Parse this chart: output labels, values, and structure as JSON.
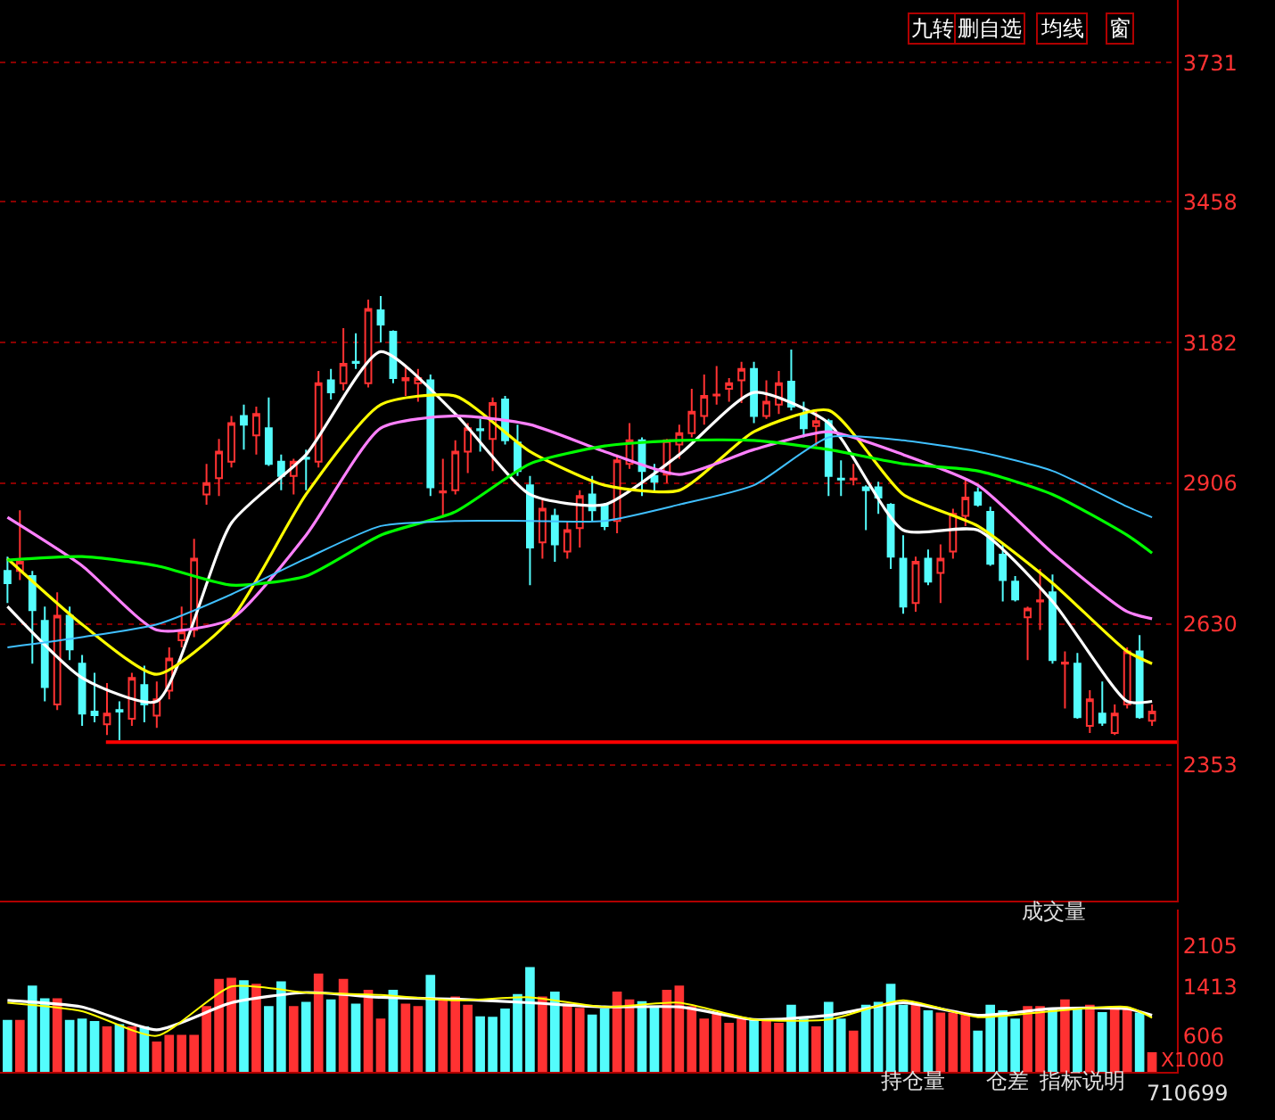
{
  "chart_data": [
    {
      "type": "candlestick",
      "categories": [
        null,
        null,
        null,
        null,
        null,
        null,
        null,
        null,
        null,
        null,
        null,
        null,
        null,
        null,
        null,
        null,
        null,
        null,
        null,
        null,
        null,
        null,
        null,
        null,
        null,
        null,
        null,
        null,
        null,
        null,
        null,
        null,
        null,
        null,
        null,
        null,
        null,
        null,
        null,
        null,
        null,
        null,
        null,
        null,
        null,
        null,
        null,
        null,
        null,
        null,
        null,
        null,
        null,
        null,
        null,
        null,
        null,
        null,
        null,
        null,
        null,
        null,
        null,
        null,
        null,
        null,
        null,
        null,
        null,
        null,
        null,
        null,
        null,
        null,
        null,
        null,
        null,
        null,
        null,
        null,
        null,
        null,
        null,
        null,
        null,
        null,
        null,
        null,
        null,
        null,
        null,
        null,
        null
      ],
      "ohlc": [
        [
          2734,
          2762,
          2671,
          2710
        ],
        [
          2734,
          2853,
          2716,
          2752
        ],
        [
          2724,
          2734,
          2552,
          2657
        ],
        [
          2636,
          2664,
          2478,
          2506
        ],
        [
          2472,
          2692,
          2461,
          2646
        ],
        [
          2646,
          2664,
          2559,
          2580
        ],
        [
          2552,
          2569,
          2430,
          2454
        ],
        [
          2458,
          2534,
          2437,
          2451
        ],
        [
          2433,
          2514,
          2412,
          2454
        ],
        [
          2461,
          2478,
          2402,
          2458
        ],
        [
          2444,
          2534,
          2430,
          2524
        ],
        [
          2510,
          2548,
          2437,
          2472
        ],
        [
          2450,
          2517,
          2426,
          2482
        ],
        [
          2499,
          2584,
          2482,
          2562
        ],
        [
          2598,
          2664,
          2584,
          2615
        ],
        [
          2618,
          2797,
          2604,
          2758
        ],
        [
          2884,
          2944,
          2864,
          2906
        ],
        [
          2916,
          2993,
          2881,
          2968
        ],
        [
          2948,
          3038,
          2937,
          3024
        ],
        [
          3038,
          3060,
          2972,
          3021
        ],
        [
          3000,
          3056,
          2962,
          3042
        ],
        [
          3014,
          3074,
          2940,
          2944
        ],
        [
          2948,
          2962,
          2892,
          2920
        ],
        [
          2920,
          2954,
          2884,
          2948
        ],
        [
          2956,
          2972,
          2892,
          2954
        ],
        [
          2948,
          3126,
          2937,
          3102
        ],
        [
          3108,
          3130,
          3070,
          3084
        ],
        [
          3102,
          3210,
          3088,
          3140
        ],
        [
          3144,
          3200,
          3130,
          3142
        ],
        [
          3102,
          3266,
          3094,
          3248
        ],
        [
          3245,
          3273,
          3182,
          3217
        ],
        [
          3203,
          3206,
          3102,
          3112
        ],
        [
          3108,
          3136,
          3077,
          3112
        ],
        [
          3102,
          3130,
          3066,
          3112
        ],
        [
          3108,
          3119,
          2881,
          2898
        ],
        [
          2888,
          2954,
          2839,
          2890
        ],
        [
          2892,
          2990,
          2884,
          2968
        ],
        [
          2968,
          3024,
          2926,
          3014
        ],
        [
          3012,
          3032,
          2968,
          3010
        ],
        [
          2993,
          3074,
          2930,
          3063
        ],
        [
          3070,
          3077,
          2982,
          2990
        ],
        [
          2986,
          3021,
          2920,
          2930
        ],
        [
          2902,
          2920,
          2706,
          2780
        ],
        [
          2790,
          2874,
          2758,
          2856
        ],
        [
          2842,
          2856,
          2752,
          2786
        ],
        [
          2772,
          2832,
          2758,
          2814
        ],
        [
          2818,
          2892,
          2780,
          2881
        ],
        [
          2884,
          2920,
          2832,
          2853
        ],
        [
          2864,
          2867,
          2814,
          2822
        ],
        [
          2832,
          2962,
          2808,
          2951
        ],
        [
          2944,
          3024,
          2934,
          2990
        ],
        [
          2990,
          2996,
          2881,
          2930
        ],
        [
          2920,
          2944,
          2888,
          2909
        ],
        [
          2923,
          2993,
          2906,
          2990
        ],
        [
          2982,
          3021,
          2954,
          3004
        ],
        [
          3004,
          3091,
          2996,
          3046
        ],
        [
          3038,
          3119,
          3021,
          3077
        ],
        [
          3078,
          3136,
          3060,
          3080
        ],
        [
          3091,
          3112,
          3066,
          3102
        ],
        [
          3108,
          3144,
          3063,
          3130
        ],
        [
          3130,
          3144,
          3024,
          3038
        ],
        [
          3038,
          3108,
          3032,
          3066
        ],
        [
          3060,
          3126,
          3042,
          3102
        ],
        [
          3105,
          3168,
          3049,
          3056
        ],
        [
          3042,
          3066,
          2996,
          3014
        ],
        [
          3018,
          3049,
          2979,
          3028
        ],
        [
          3028,
          3032,
          2881,
          2920
        ],
        [
          2915,
          2951,
          2881,
          2913
        ],
        [
          2913,
          2944,
          2902,
          2915
        ],
        [
          2898,
          2902,
          2814,
          2892
        ],
        [
          2898,
          2909,
          2846,
          2878
        ],
        [
          2864,
          2867,
          2738,
          2762
        ],
        [
          2758,
          2804,
          2650,
          2664
        ],
        [
          2671,
          2762,
          2654,
          2752
        ],
        [
          2758,
          2776,
          2706,
          2713
        ],
        [
          2730,
          2786,
          2671,
          2758
        ],
        [
          2772,
          2856,
          2758,
          2846
        ],
        [
          2842,
          2912,
          2822,
          2878
        ],
        [
          2888,
          2898,
          2860,
          2864
        ],
        [
          2850,
          2860,
          2744,
          2748
        ],
        [
          2766,
          2786,
          2674,
          2716
        ],
        [
          2713,
          2724,
          2674,
          2678
        ],
        [
          2643,
          2664,
          2559,
          2660
        ],
        [
          2674,
          2738,
          2618,
          2676
        ],
        [
          2692,
          2727,
          2552,
          2559
        ],
        [
          2552,
          2576,
          2464,
          2554
        ],
        [
          2552,
          2573,
          2444,
          2447
        ],
        [
          2430,
          2500,
          2416,
          2482
        ],
        [
          2454,
          2517,
          2430,
          2436
        ],
        [
          2416,
          2472,
          2412,
          2454
        ],
        [
          2472,
          2584,
          2464,
          2576
        ],
        [
          2576,
          2608,
          2444,
          2447
        ],
        [
          2440,
          2472,
          2430,
          2458
        ]
      ],
      "series": [
        {
          "type": "line",
          "color": "#ffffff",
          "values": [
            2664,
            null,
            null,
            null,
            null,
            null,
            2524,
            null,
            null,
            null,
            null,
            null,
            2478,
            null,
            null,
            null,
            null,
            null,
            2828,
            null,
            null,
            null,
            null,
            null,
            2962,
            null,
            null,
            null,
            null,
            null,
            3164,
            null,
            null,
            null,
            null,
            null,
            3042,
            null,
            null,
            null,
            null,
            null,
            2884,
            null,
            null,
            null,
            null,
            null,
            2864,
            null,
            null,
            null,
            null,
            null,
            2962,
            null,
            null,
            null,
            null,
            null,
            3084,
            null,
            null,
            null,
            null,
            null,
            3024,
            null,
            null,
            null,
            null,
            null,
            2814,
            null,
            null,
            null,
            null,
            null,
            2814,
            null,
            null,
            null,
            null,
            null,
            2674,
            null,
            null,
            null,
            null,
            null,
            2478,
            null,
            2478
          ]
        },
        {
          "type": "line",
          "color": "#ffff00",
          "values": [
            2758,
            null,
            null,
            null,
            null,
            null,
            2629,
            null,
            null,
            null,
            null,
            null,
            2531,
            null,
            null,
            null,
            null,
            null,
            2640,
            null,
            null,
            null,
            null,
            null,
            2884,
            null,
            null,
            null,
            null,
            null,
            3060,
            null,
            null,
            null,
            null,
            null,
            3077,
            null,
            null,
            null,
            null,
            null,
            2968,
            null,
            null,
            null,
            null,
            null,
            2902,
            null,
            null,
            null,
            null,
            null,
            2892,
            null,
            null,
            null,
            null,
            null,
            3007,
            null,
            null,
            null,
            null,
            null,
            3049,
            null,
            null,
            null,
            null,
            null,
            2884,
            null,
            null,
            null,
            null,
            null,
            2822,
            null,
            null,
            null,
            null,
            null,
            2710,
            null,
            null,
            null,
            null,
            null,
            2576,
            null,
            2552
          ]
        },
        {
          "type": "line",
          "color": "#ff80ff",
          "values": [
            2839,
            null,
            null,
            null,
            null,
            null,
            2744,
            null,
            null,
            null,
            null,
            null,
            2618,
            null,
            null,
            null,
            null,
            null,
            2640,
            null,
            null,
            null,
            null,
            null,
            2804,
            null,
            null,
            null,
            null,
            null,
            3014,
            null,
            null,
            null,
            null,
            null,
            3038,
            null,
            null,
            null,
            null,
            null,
            3021,
            null,
            null,
            null,
            null,
            null,
            2968,
            null,
            null,
            null,
            null,
            null,
            2923,
            null,
            null,
            null,
            null,
            null,
            2972,
            null,
            null,
            null,
            null,
            null,
            3007,
            null,
            null,
            null,
            null,
            null,
            2962,
            null,
            null,
            null,
            null,
            null,
            2902,
            null,
            null,
            null,
            null,
            null,
            2769,
            null,
            null,
            null,
            null,
            null,
            2654,
            null,
            2640
          ]
        },
        {
          "type": "line",
          "color": "#00ff00",
          "values": [
            2755,
            null,
            null,
            null,
            null,
            null,
            2762,
            null,
            null,
            null,
            null,
            null,
            2744,
            null,
            null,
            null,
            null,
            null,
            2706,
            null,
            null,
            null,
            null,
            null,
            2724,
            null,
            null,
            null,
            null,
            null,
            2804,
            null,
            null,
            null,
            null,
            null,
            2850,
            null,
            null,
            null,
            null,
            null,
            2944,
            null,
            null,
            null,
            null,
            null,
            2979,
            null,
            null,
            null,
            null,
            null,
            2990,
            null,
            null,
            null,
            null,
            null,
            2990,
            null,
            null,
            null,
            null,
            null,
            2972,
            null,
            null,
            null,
            null,
            null,
            2944,
            null,
            null,
            null,
            null,
            null,
            2930,
            null,
            null,
            null,
            null,
            null,
            2884,
            null,
            null,
            null,
            null,
            null,
            2804,
            null,
            2769
          ]
        },
        {
          "type": "line",
          "color": "#40c0ff",
          "values": [
            2584,
            null,
            null,
            null,
            null,
            null,
            2604,
            null,
            null,
            null,
            null,
            null,
            2629,
            null,
            null,
            null,
            null,
            null,
            2688,
            null,
            null,
            null,
            null,
            null,
            2758,
            null,
            null,
            null,
            null,
            null,
            2822,
            null,
            null,
            null,
            null,
            null,
            2832,
            null,
            null,
            null,
            null,
            null,
            2832,
            null,
            null,
            null,
            null,
            null,
            2832,
            null,
            null,
            null,
            null,
            null,
            2864,
            null,
            null,
            null,
            null,
            null,
            2902,
            null,
            null,
            null,
            null,
            null,
            2996,
            null,
            null,
            null,
            null,
            null,
            2990,
            null,
            null,
            null,
            null,
            null,
            2968,
            null,
            null,
            null,
            null,
            null,
            2930,
            null,
            null,
            null,
            null,
            null,
            2860,
            null,
            2839
          ]
        }
      ],
      "ylim": [
        2087,
        3854
      ],
      "yticks": [
        3731,
        3458,
        3182,
        2906,
        2630,
        2353
      ],
      "grid": "y",
      "tick_labels": "y",
      "ref_lines": [
        {
          "axis": "y",
          "value": 2398,
          "color": "#ff0000"
        }
      ],
      "annotations": [
        "九转",
        "删自选",
        "均线",
        "窗"
      ]
    },
    {
      "type": "bar",
      "categories": [
        null,
        null,
        null,
        null,
        null,
        null,
        null,
        null,
        null,
        null,
        null,
        null,
        null,
        null,
        null,
        null,
        null,
        null,
        null,
        null,
        null,
        null,
        null,
        null,
        null,
        null,
        null,
        null,
        null,
        null,
        null,
        null,
        null,
        null,
        null,
        null,
        null,
        null,
        null,
        null,
        null,
        null,
        null,
        null,
        null,
        null,
        null,
        null,
        null,
        null,
        null,
        null,
        null,
        null,
        null,
        null,
        null,
        null,
        null,
        null,
        null,
        null,
        null,
        null,
        null,
        null,
        null,
        null,
        null,
        null,
        null,
        null,
        null,
        null,
        null,
        null,
        null,
        null,
        null,
        null,
        null,
        null,
        null,
        null,
        null,
        null,
        null,
        null,
        null,
        null,
        null,
        null,
        null
      ],
      "series": [
        {
          "type": "bar",
          "values": [
            850,
            850,
            1420,
            1210,
            1210,
            850,
            870,
            830,
            740,
            780,
            740,
            740,
            490,
            600,
            600,
            600,
            1080,
            1530,
            1550,
            1510,
            1450,
            1080,
            1490,
            1080,
            1150,
            1620,
            1190,
            1530,
            1120,
            1350,
            870,
            1350,
            1120,
            1080,
            1600,
            1210,
            1240,
            1100,
            910,
            900,
            1040,
            1280,
            1730,
            1240,
            1320,
            1120,
            1050,
            940,
            1040,
            1320,
            1190,
            1160,
            1080,
            1350,
            1420,
            1080,
            870,
            970,
            800,
            870,
            870,
            830,
            800,
            1100,
            870,
            740,
            1150,
            870,
            670,
            1100,
            1150,
            1450,
            1100,
            1100,
            1010,
            970,
            970,
            940,
            670,
            1100,
            1010,
            870,
            1080,
            1080,
            1040,
            1190,
            1040,
            1100,
            980,
            1040,
            1040,
            970,
            310
          ],
          "colors": [
            "#54fcfc",
            "#ff3232",
            "#54fcfc",
            "#54fcfc",
            "#ff3232",
            "#54fcfc",
            "#54fcfc",
            "#54fcfc",
            "#ff3232",
            "#54fcfc",
            "#ff3232",
            "#54fcfc",
            "#ff3232",
            "#ff3232",
            "#ff3232",
            "#ff3232",
            "#ff3232",
            "#ff3232",
            "#ff3232",
            "#54fcfc",
            "#ff3232",
            "#54fcfc",
            "#54fcfc",
            "#ff3232",
            "#54fcfc",
            "#ff3232",
            "#54fcfc",
            "#ff3232",
            "#54fcfc",
            "#ff3232",
            "#ff3232",
            "#54fcfc",
            "#ff3232",
            "#ff3232",
            "#54fcfc",
            "#ff3232",
            "#ff3232",
            "#ff3232",
            "#54fcfc",
            "#54fcfc",
            "#54fcfc",
            "#54fcfc",
            "#54fcfc",
            "#ff3232",
            "#54fcfc",
            "#ff3232",
            "#ff3232",
            "#54fcfc",
            "#54fcfc",
            "#ff3232",
            "#ff3232",
            "#54fcfc",
            "#54fcfc",
            "#ff3232",
            "#ff3232",
            "#ff3232",
            "#ff3232",
            "#ff3232",
            "#ff3232",
            "#ff3232",
            "#54fcfc",
            "#ff3232",
            "#ff3232",
            "#54fcfc",
            "#54fcfc",
            "#ff3232",
            "#54fcfc",
            "#54fcfc",
            "#ff3232",
            "#54fcfc",
            "#54fcfc",
            "#54fcfc",
            "#54fcfc",
            "#ff3232",
            "#54fcfc",
            "#ff3232",
            "#ff3232",
            "#ff3232",
            "#54fcfc",
            "#54fcfc",
            "#54fcfc",
            "#54fcfc",
            "#ff3232",
            "#ff3232",
            "#54fcfc",
            "#ff3232",
            "#54fcfc",
            "#ff3232",
            "#54fcfc",
            "#ff3232",
            "#ff3232",
            "#54fcfc",
            "#ff3232"
          ]
        },
        {
          "type": "line",
          "color": "#ffffff",
          "values": [
            1190,
            null,
            null,
            null,
            null,
            null,
            1080,
            null,
            null,
            null,
            null,
            null,
            700,
            null,
            null,
            null,
            null,
            null,
            1150,
            null,
            null,
            null,
            null,
            null,
            1320,
            null,
            null,
            null,
            null,
            null,
            1240,
            null,
            null,
            null,
            null,
            null,
            1210,
            null,
            null,
            null,
            null,
            null,
            1150,
            null,
            null,
            null,
            null,
            null,
            1080,
            null,
            null,
            null,
            null,
            null,
            1080,
            null,
            null,
            null,
            null,
            null,
            870,
            null,
            null,
            null,
            null,
            null,
            940,
            null,
            null,
            null,
            null,
            null,
            1150,
            null,
            null,
            null,
            null,
            null,
            940,
            null,
            null,
            null,
            null,
            null,
            1050,
            null,
            null,
            null,
            null,
            null,
            1050,
            null,
            940
          ]
        },
        {
          "type": "line",
          "color": "#ffff00",
          "values": [
            1150,
            null,
            null,
            null,
            null,
            null,
            1010,
            null,
            null,
            null,
            null,
            null,
            600,
            null,
            null,
            null,
            null,
            null,
            1420,
            null,
            null,
            null,
            null,
            null,
            1320,
            null,
            null,
            null,
            null,
            null,
            1280,
            null,
            null,
            null,
            null,
            null,
            1190,
            null,
            null,
            null,
            null,
            null,
            1240,
            null,
            null,
            null,
            null,
            null,
            1080,
            null,
            null,
            null,
            null,
            null,
            1150,
            null,
            null,
            null,
            null,
            null,
            870,
            null,
            null,
            null,
            null,
            null,
            870,
            null,
            null,
            null,
            null,
            null,
            1190,
            null,
            null,
            null,
            null,
            null,
            910,
            null,
            null,
            null,
            null,
            null,
            1010,
            null,
            null,
            null,
            null,
            null,
            1080,
            null,
            900
          ]
        }
      ],
      "ylim": [
        0,
        2700
      ],
      "yticks": [
        2105,
        1413,
        606
      ],
      "tick_labels": "y",
      "annotations": [
        "成交量",
        "X1000",
        "持仓量",
        "仓差",
        "指标说明",
        "710699"
      ]
    }
  ]
}
